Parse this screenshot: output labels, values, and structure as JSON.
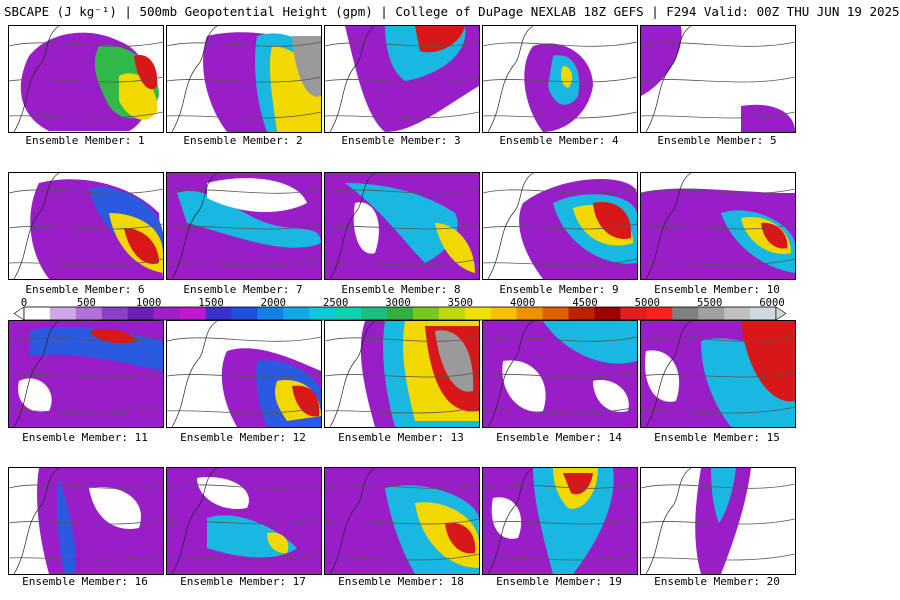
{
  "header": {
    "title": "SBCAPE (J kg⁻¹) | 500mb Geopotential Height (gpm) | College of DuPage NEXLAB 18Z GEFS | F294 Valid: 00Z THU JUN 19 2025"
  },
  "colorbar": {
    "ticks": [
      "0",
      "500",
      "1000",
      "1500",
      "2000",
      "2500",
      "3000",
      "3500",
      "4000",
      "4500",
      "5000",
      "5500",
      "6000"
    ],
    "colors": [
      "#ffffff",
      "#cfa6e6",
      "#b070d8",
      "#8a3fc8",
      "#6a1fb8",
      "#a020c8",
      "#c018d0",
      "#3a2fd0",
      "#2050e0",
      "#1080e8",
      "#10a8e8",
      "#10c8d8",
      "#10d0b0",
      "#18c080",
      "#30b040",
      "#78c820",
      "#c0d810",
      "#f0e000",
      "#f8c000",
      "#f09000",
      "#e06000",
      "#c02000",
      "#a00000",
      "#e02020",
      "#ff2020",
      "#808080",
      "#a0a0a0",
      "#c0c0c0",
      "#d0d8e0"
    ]
  },
  "panels": [
    {
      "label": "Ensemble Member: 1"
    },
    {
      "label": "Ensemble Member: 2"
    },
    {
      "label": "Ensemble Member: 3"
    },
    {
      "label": "Ensemble Member: 4"
    },
    {
      "label": "Ensemble Member: 5"
    },
    {
      "label": "Ensemble Member: 6"
    },
    {
      "label": "Ensemble Member: 7"
    },
    {
      "label": "Ensemble Member: 8"
    },
    {
      "label": "Ensemble Member: 9"
    },
    {
      "label": "Ensemble Member: 10"
    },
    {
      "label": "Ensemble Member: 11"
    },
    {
      "label": "Ensemble Member: 12"
    },
    {
      "label": "Ensemble Member: 13"
    },
    {
      "label": "Ensemble Member: 14"
    },
    {
      "label": "Ensemble Member: 15"
    },
    {
      "label": "Ensemble Member: 16"
    },
    {
      "label": "Ensemble Member: 17"
    },
    {
      "label": "Ensemble Member: 18"
    },
    {
      "label": "Ensemble Member: 19"
    },
    {
      "label": "Ensemble Member: 20"
    }
  ]
}
